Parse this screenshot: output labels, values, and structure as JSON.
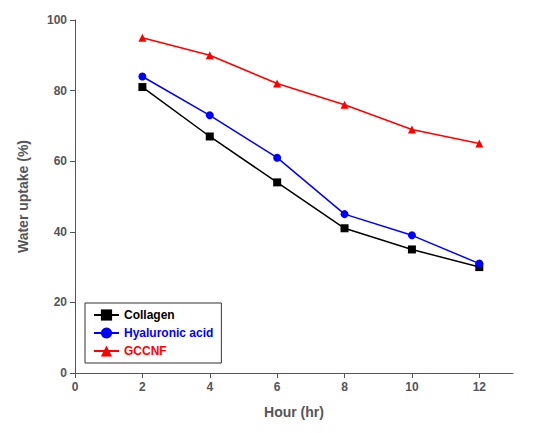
{
  "chart_data": {
    "type": "line",
    "x": [
      2,
      4,
      6,
      8,
      10,
      12
    ],
    "series": [
      {
        "name": "Collagen",
        "color": "#000000",
        "marker": "square",
        "values": [
          81,
          67,
          54,
          41,
          35,
          30
        ]
      },
      {
        "name": "Hyaluronic acid",
        "color": "#0000ff",
        "marker": "circle",
        "values": [
          84,
          73,
          61,
          45,
          39,
          31
        ]
      },
      {
        "name": "GCCNF",
        "color": "#ff0000",
        "marker": "triangle",
        "values": [
          95,
          90,
          82,
          76,
          69,
          65
        ]
      }
    ],
    "xlabel": "Hour (hr)",
    "ylabel": "Water uptake (%)",
    "xlim": [
      0,
      13
    ],
    "ylim": [
      0,
      100
    ],
    "xticks": [
      0,
      2,
      4,
      6,
      8,
      10,
      12
    ],
    "yticks": [
      0,
      20,
      40,
      60,
      80,
      100
    ],
    "legend": "lower left",
    "grid": false
  }
}
